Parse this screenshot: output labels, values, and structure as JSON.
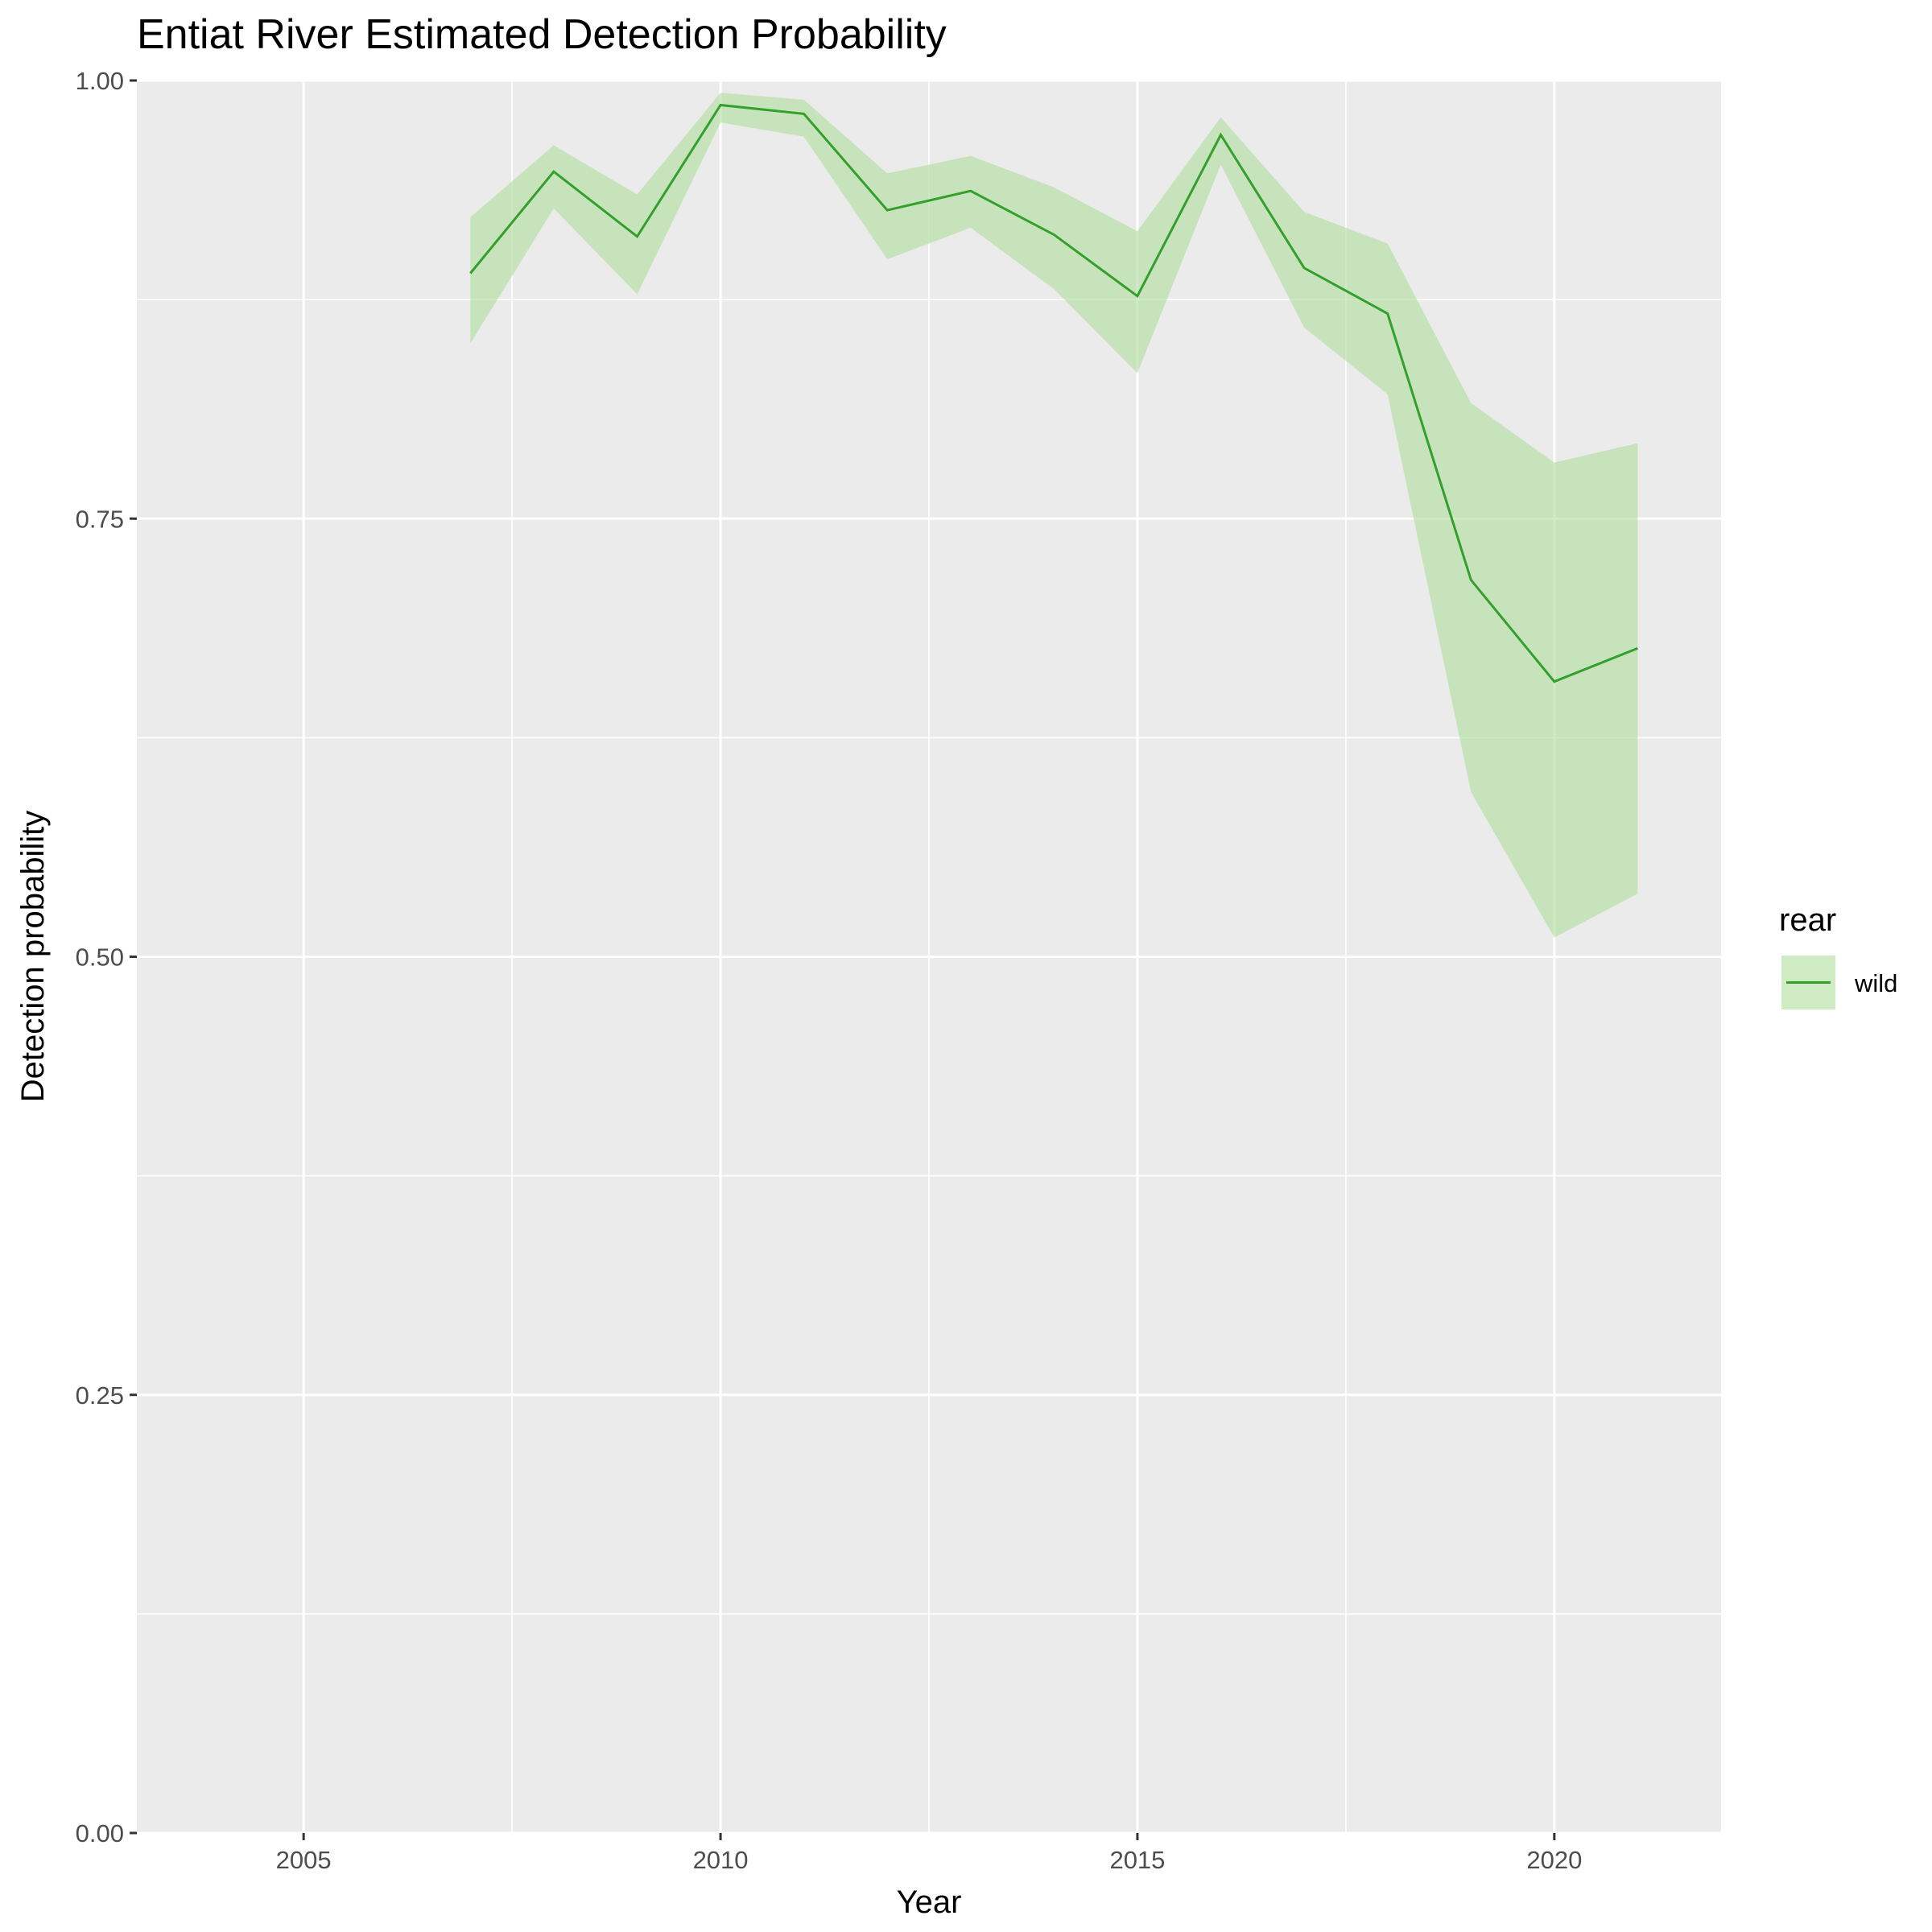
{
  "chart_data": {
    "type": "line",
    "title": "Entiat River Estimated Detection Probability",
    "xlabel": "Year",
    "ylabel": "Detection probability",
    "xlim": [
      2003,
      2022
    ],
    "ylim": [
      0,
      1
    ],
    "x_ticks": [
      2005,
      2010,
      2015,
      2020
    ],
    "x_tick_labels": [
      "2005",
      "2010",
      "2015",
      "2020"
    ],
    "y_ticks": [
      0,
      0.25,
      0.5,
      0.75,
      1.0
    ],
    "y_tick_labels": [
      "0.00",
      "0.25",
      "0.50",
      "0.75",
      "1.00"
    ],
    "grid": true,
    "legend": {
      "title": "rear",
      "position": "right"
    },
    "x": [
      2007,
      2008,
      2009,
      2010,
      2011,
      2012,
      2013,
      2014,
      2015,
      2016,
      2017,
      2018,
      2019,
      2020,
      2021
    ],
    "series": [
      {
        "name": "wild",
        "color": "#33a02c",
        "ribbon_color": "#b2dfa0",
        "values": [
          0.89,
          0.948,
          0.911,
          0.986,
          0.981,
          0.926,
          0.937,
          0.912,
          0.877,
          0.969,
          0.893,
          0.867,
          0.715,
          0.657,
          0.676
        ],
        "lower": [
          0.85,
          0.927,
          0.878,
          0.976,
          0.968,
          0.898,
          0.916,
          0.881,
          0.833,
          0.952,
          0.859,
          0.821,
          0.594,
          0.511,
          0.536
        ],
        "upper": [
          0.922,
          0.963,
          0.935,
          0.993,
          0.989,
          0.947,
          0.957,
          0.939,
          0.914,
          0.979,
          0.925,
          0.907,
          0.816,
          0.782,
          0.793
        ]
      }
    ]
  }
}
